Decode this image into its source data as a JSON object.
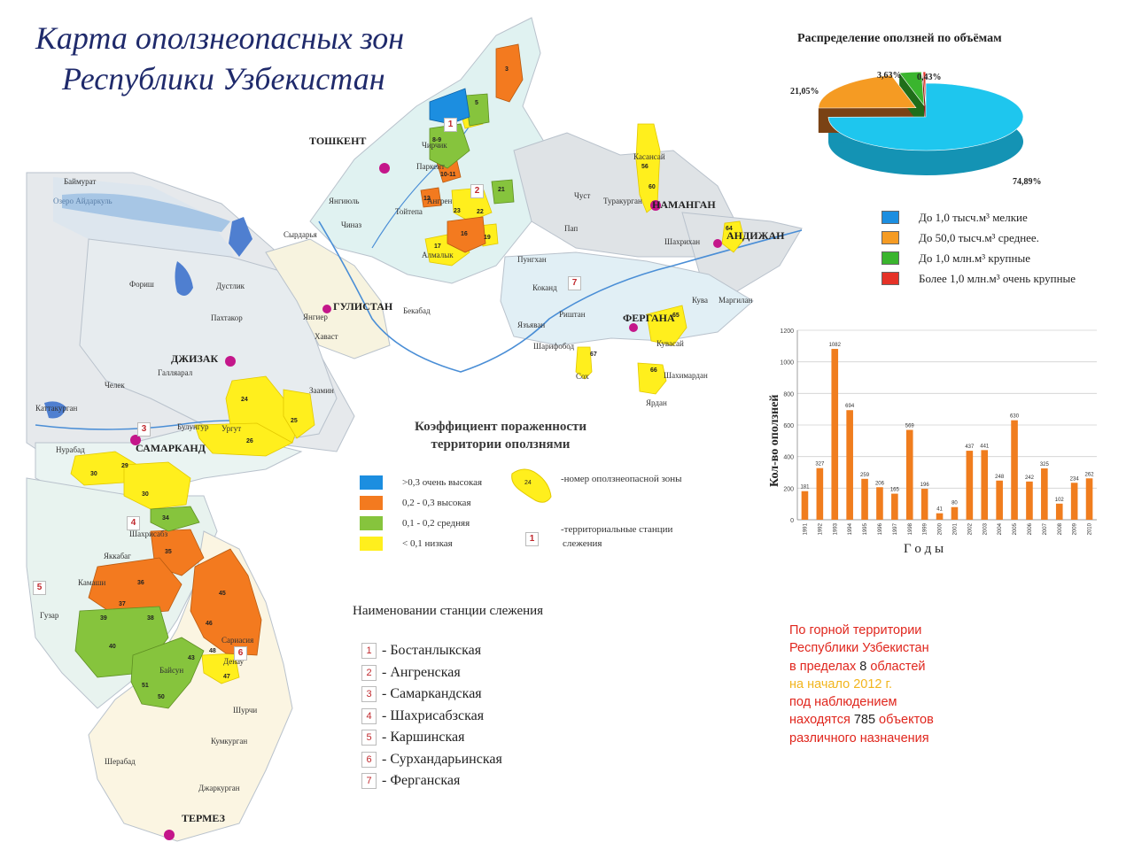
{
  "title": {
    "line1": "Карта оползнеопасных зон",
    "line2": "Республики Узбекистан"
  },
  "colors": {
    "very_high": "#1c8ee0",
    "high": "#f37a1f",
    "medium": "#86c43d",
    "low": "#ffef1d",
    "pie_small": "#1ec6ee",
    "pie_medium": "#f59b23",
    "pie_large": "#3ab52e",
    "pie_very_large": "#e53227",
    "bar": "#f07d1e",
    "station_red": "#c0282d",
    "city_marker": "#c4168a"
  },
  "map": {
    "cities": [
      {
        "label": "ТОШКЕНТ"
      },
      {
        "label": "НАМАНГАН"
      },
      {
        "label": "АНДИЖАН"
      },
      {
        "label": "ФЕРГАНА"
      },
      {
        "label": "ГУЛИСТАН"
      },
      {
        "label": "ДЖИЗАК"
      },
      {
        "label": "САМАРКАНД"
      },
      {
        "label": "ТЕРМЕЗ"
      }
    ],
    "places": [
      "Баймурат",
      "Озеро Айдаркуль",
      "Фориш",
      "Дустлик",
      "Пахтакор",
      "Галляарал",
      "Челек",
      "Каттакурган",
      "Нурабад",
      "Булунгур",
      "Ургут",
      "Шахрисабз",
      "Яккабаг",
      "Камаши",
      "Гузар",
      "Байсун",
      "Сариасия",
      "Денау",
      "Шурчи",
      "Кумкурган",
      "Шерабад",
      "Джаркурган",
      "Янгиюль",
      "Чиназ",
      "Сырдарья",
      "Янгиер",
      "Хаваст",
      "Бекабад",
      "Заамин",
      "Чирчик",
      "Паркент",
      "Ангрен",
      "Тойтепа",
      "Алмалык",
      "Касансай",
      "Чуст",
      "Туракурган",
      "Пап",
      "Шахрихан",
      "Кува",
      "Маргилан",
      "Коканд",
      "Риштан",
      "Язъяван",
      "Шарифобод",
      "Сох",
      "Шахимардан",
      "Ярдан",
      "Пунгхан",
      "Кувасай"
    ],
    "zone_numbers": [
      "1",
      "2",
      "3",
      "4",
      "5",
      "6",
      "7",
      "8-9",
      "10-11",
      "12",
      "16",
      "17",
      "18",
      "19",
      "20",
      "21",
      "22",
      "23",
      "24",
      "25",
      "26",
      "29",
      "30",
      "34",
      "35",
      "36",
      "37",
      "38",
      "39",
      "40",
      "43",
      "45",
      "46",
      "47",
      "48",
      "50",
      "51",
      "56",
      "57",
      "59",
      "60",
      "64",
      "65",
      "66",
      "67"
    ],
    "station_badges": [
      "1",
      "2",
      "3",
      "4",
      "5",
      "6",
      "7"
    ]
  },
  "pie": {
    "title": "Распределение оползней по объёмам",
    "slices": [
      {
        "value": 74.89,
        "label": "74,89%"
      },
      {
        "value": 21.05,
        "label": "21,05%"
      },
      {
        "value": 3.63,
        "label": "3,63%"
      },
      {
        "value": 0.43,
        "label": "0,43%"
      }
    ],
    "legend": [
      {
        "text": "До 1,0 тысч.м³ мелкие",
        "color": "#1c8ee0"
      },
      {
        "text": "До 50,0 тысч.м³ среднее.",
        "color": "#f59b23"
      },
      {
        "text": "До 1,0 млн.м³ крупные",
        "color": "#3ab52e"
      },
      {
        "text": "Более 1,0 млн.м³ очень крупные",
        "color": "#e53227"
      }
    ]
  },
  "chart_data": {
    "type": "bar",
    "ylabel": "Кол-во оползней",
    "xlabel": "Г о д ы",
    "ylim": [
      0,
      1200
    ],
    "yticks": [
      0,
      200,
      400,
      600,
      800,
      1000,
      1200
    ],
    "categories": [
      "1991",
      "1992",
      "1993",
      "1994",
      "1995",
      "1996",
      "1997",
      "1998",
      "1999",
      "2000",
      "2001",
      "2002",
      "2003",
      "2004",
      "2005",
      "2006",
      "2007",
      "2008",
      "2009",
      "2010"
    ],
    "values": [
      181,
      327,
      1082,
      694,
      259,
      206,
      165,
      569,
      196,
      41,
      80,
      437,
      441,
      248,
      630,
      242,
      325,
      102,
      234,
      262
    ]
  },
  "coefficient": {
    "title_line1": "Коэффициент пораженности",
    "title_line2": "территории оползнями",
    "legend": [
      {
        "text": ">0,3 очень высокая",
        "color": "#1c8ee0"
      },
      {
        "text": "0,2 - 0,3 высокая",
        "color": "#f37a1f"
      },
      {
        "text": "0,1 - 0,2 средняя",
        "color": "#86c43d"
      },
      {
        "text": "< 0,1 низкая",
        "color": "#ffef1d"
      }
    ],
    "zone_sample_number": "24",
    "zone_note": "-номер оползнеопасной зоны",
    "station_sample_number": "1",
    "station_note_line1": "-территориальные станции",
    "station_note_line2": "слежения"
  },
  "stations": {
    "title": "Наименовании станции слежения",
    "items": [
      {
        "num": "1",
        "name": "- Бостанлыкская"
      },
      {
        "num": "2",
        "name": "- Ангренская"
      },
      {
        "num": "3",
        "name": "- Самаркандская"
      },
      {
        "num": "4",
        "name": "- Шахрисабзская"
      },
      {
        "num": "5",
        "name": "- Каршинская"
      },
      {
        "num": "6",
        "name": "- Сурхандарьинская"
      },
      {
        "num": "7",
        "name": "- Ферганская"
      }
    ]
  },
  "note": {
    "p1": "По горной территории",
    "p2": "Республики Узбекистан",
    "p3a": "в пределах ",
    "p3n": "8",
    "p3b": " областей",
    "p4": "на  начало 2012 г.",
    "p5": "под наблюдением",
    "p6a": "находятся ",
    "p6n": "785",
    "p6b": " объектов",
    "p7": "различного назначения"
  }
}
